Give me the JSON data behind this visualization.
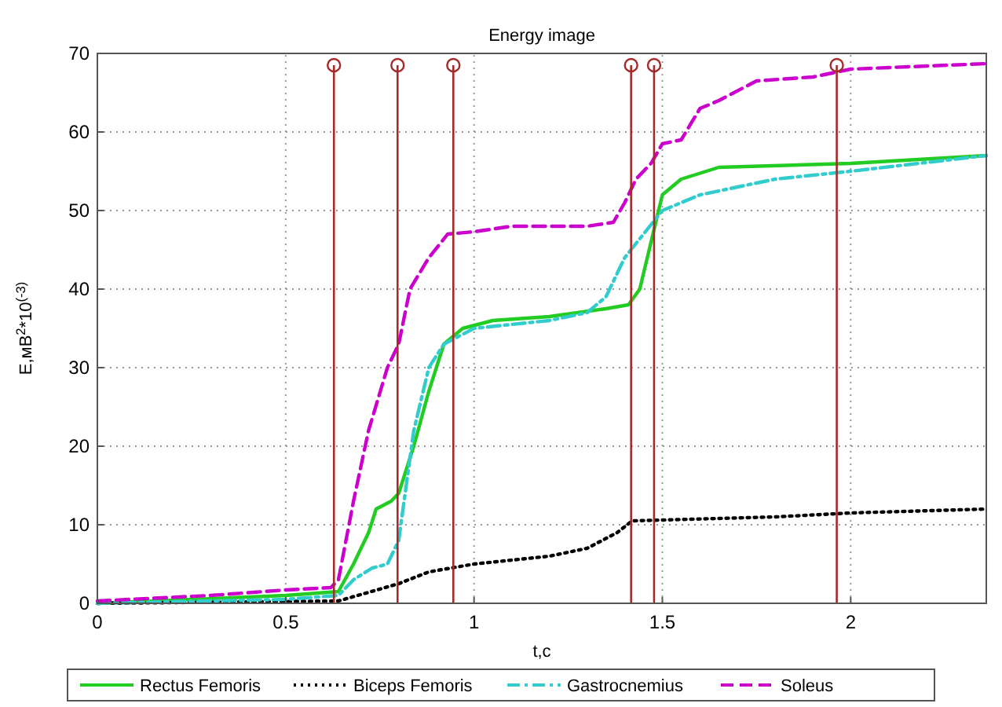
{
  "chart_data": {
    "type": "line",
    "title": "Energy image",
    "xlabel": "t,c",
    "ylabel": "E,мВ$^{2}$*10$^{(-3)}$",
    "xlim": [
      0,
      2.36
    ],
    "xticks": [
      0,
      0.5,
      1,
      1.5,
      2
    ],
    "ylim": [
      0,
      70
    ],
    "yticks": [
      0,
      10,
      20,
      30,
      40,
      50,
      60,
      70
    ],
    "grid": true,
    "legend": "bottom",
    "series": [
      {
        "name": "Rectus Femoris",
        "color": "#22cc22",
        "line_style": "solid",
        "x": [
          0,
          0.5,
          0.64,
          0.68,
          0.72,
          0.74,
          0.78,
          0.8,
          0.84,
          0.88,
          0.92,
          0.97,
          1.05,
          1.2,
          1.35,
          1.41,
          1.44,
          1.47,
          1.5,
          1.55,
          1.65,
          2.0,
          2.36
        ],
        "values": [
          0,
          1,
          1.5,
          5,
          9,
          12,
          13,
          14,
          20,
          27,
          33,
          35,
          36,
          36.5,
          37.5,
          38,
          40,
          46,
          52,
          54,
          55.5,
          56,
          57
        ]
      },
      {
        "name": "Biceps Femoris",
        "color": "#000000",
        "line_style": "dotted",
        "x": [
          0,
          0.64,
          0.8,
          0.88,
          1.0,
          1.2,
          1.3,
          1.38,
          1.42,
          1.5,
          1.8,
          2.0,
          2.36
        ],
        "values": [
          0,
          0.3,
          2.5,
          4,
          5,
          6,
          7,
          9,
          10.5,
          10.6,
          11,
          11.5,
          12
        ]
      },
      {
        "name": "Gastrocnemius",
        "color": "#33cccc",
        "line_style": "dashdot",
        "x": [
          0,
          0.5,
          0.64,
          0.68,
          0.73,
          0.77,
          0.8,
          0.84,
          0.88,
          0.92,
          1.0,
          1.2,
          1.3,
          1.35,
          1.4,
          1.45,
          1.5,
          1.6,
          1.8,
          2.0,
          2.36
        ],
        "values": [
          0,
          0.5,
          1,
          3,
          4.5,
          5,
          8,
          22,
          30,
          33,
          35,
          36,
          37,
          39,
          44,
          47,
          50,
          52,
          54,
          55,
          57
        ]
      },
      {
        "name": "Soleus",
        "color": "#cc00cc",
        "line_style": "dashed",
        "x": [
          0,
          0.3,
          0.5,
          0.62,
          0.64,
          0.68,
          0.72,
          0.77,
          0.8,
          0.83,
          0.88,
          0.93,
          1.0,
          1.1,
          1.3,
          1.37,
          1.4,
          1.43,
          1.47,
          1.5,
          1.55,
          1.6,
          1.65,
          1.75,
          1.9,
          2.0,
          2.36
        ],
        "values": [
          0.3,
          1,
          1.7,
          2,
          3,
          13,
          22,
          30,
          33,
          40,
          44,
          47,
          47.3,
          48,
          48,
          48.5,
          51,
          54,
          56,
          58.5,
          59,
          63,
          64,
          66.5,
          67,
          68,
          68.7
        ]
      },
      {
        "type": "lollipop",
        "color": "#a52a2a",
        "marker": "circle",
        "x": [
          0.628,
          0.797,
          0.945,
          1.417,
          1.478,
          1.963
        ],
        "values": [
          68.5,
          68.5,
          68.5,
          68.5,
          68.5,
          68.5
        ]
      }
    ]
  }
}
